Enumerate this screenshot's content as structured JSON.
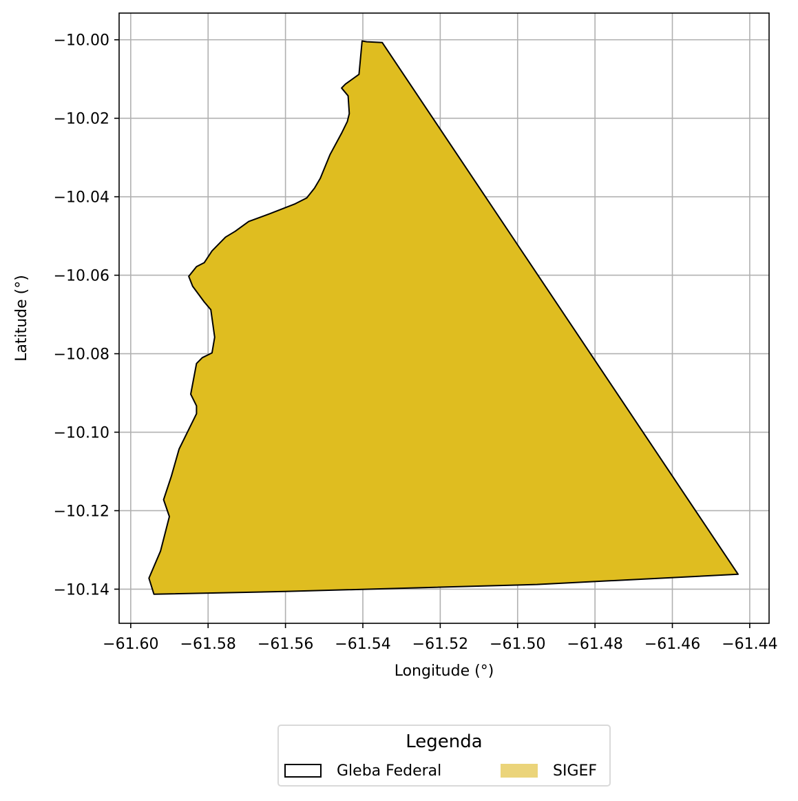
{
  "chart_data": {
    "type": "map",
    "xlabel": "Longitude (°)",
    "ylabel": "Latitude (°)",
    "xlim": [
      -61.603,
      -61.435
    ],
    "ylim": [
      -10.1487,
      -9.9932
    ],
    "x_ticks": [
      -61.6,
      -61.58,
      -61.56,
      -61.54,
      -61.52,
      -61.5,
      -61.48,
      -61.46,
      -61.44
    ],
    "y_ticks": [
      -10.0,
      -10.02,
      -10.04,
      -10.06,
      -10.08,
      -10.1,
      -10.12,
      -10.14
    ],
    "x_tick_labels": [
      "−61.60",
      "−61.58",
      "−61.56",
      "−61.54",
      "−61.52",
      "−61.50",
      "−61.48",
      "−61.46",
      "−61.44"
    ],
    "y_tick_labels": [
      "−10.00",
      "−10.02",
      "−10.04",
      "−10.06",
      "−10.08",
      "−10.10",
      "−10.12",
      "−10.14"
    ],
    "grid": true,
    "colors": {
      "fill": "#dfbd20",
      "outline": "#000000",
      "grid": "#b0b0b0",
      "legend_fill": "#ebd47a"
    },
    "polygon": [
      [
        -61.5402,
        -10.0003
      ],
      [
        -61.539,
        -10.0005
      ],
      [
        -61.535,
        -10.0007
      ],
      [
        -61.443,
        -10.1362
      ],
      [
        -61.495,
        -10.1388
      ],
      [
        -61.56,
        -10.1406
      ],
      [
        -61.594,
        -10.1413
      ],
      [
        -61.5953,
        -10.1372
      ],
      [
        -61.5923,
        -10.1303
      ],
      [
        -61.59,
        -10.1215
      ],
      [
        -61.5915,
        -10.1172
      ],
      [
        -61.5895,
        -10.1112
      ],
      [
        -61.5875,
        -10.1043
      ],
      [
        -61.583,
        -10.0953
      ],
      [
        -61.583,
        -10.0933
      ],
      [
        -61.5845,
        -10.0903
      ],
      [
        -61.583,
        -10.0825
      ],
      [
        -61.5815,
        -10.081
      ],
      [
        -61.579,
        -10.0798
      ],
      [
        -61.5783,
        -10.0758
      ],
      [
        -61.5793,
        -10.0688
      ],
      [
        -61.581,
        -10.0668
      ],
      [
        -61.5825,
        -10.0648
      ],
      [
        -61.584,
        -10.0628
      ],
      [
        -61.585,
        -10.0603
      ],
      [
        -61.583,
        -10.0578
      ],
      [
        -61.581,
        -10.0568
      ],
      [
        -61.579,
        -10.0538
      ],
      [
        -61.5755,
        -10.0503
      ],
      [
        -61.573,
        -10.0488
      ],
      [
        -61.5695,
        -10.0463
      ],
      [
        -61.564,
        -10.0443
      ],
      [
        -61.5575,
        -10.0418
      ],
      [
        -61.5545,
        -10.0403
      ],
      [
        -61.5525,
        -10.0378
      ],
      [
        -61.551,
        -10.0353
      ],
      [
        -61.5485,
        -10.0293
      ],
      [
        -61.5455,
        -10.0238
      ],
      [
        -61.544,
        -10.0208
      ],
      [
        -61.5435,
        -10.0188
      ],
      [
        -61.5438,
        -10.0143
      ],
      [
        -61.5455,
        -10.0123
      ],
      [
        -61.5445,
        -10.0113
      ],
      [
        -61.541,
        -10.0088
      ],
      [
        -61.5402,
        -10.0003
      ]
    ]
  },
  "legend": {
    "title": "Legenda",
    "items": [
      {
        "label": "Gleba Federal"
      },
      {
        "label": "SIGEF"
      }
    ]
  }
}
